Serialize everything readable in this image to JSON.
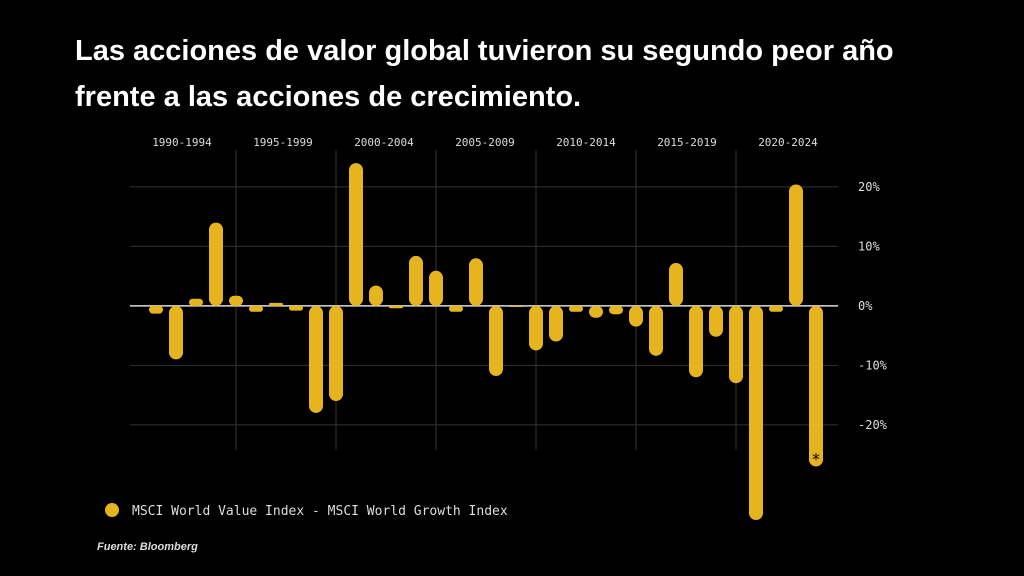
{
  "chart_data": {
    "type": "bar",
    "title_lines": [
      "Las acciones de valor global tuvieron su segundo peor año",
      "frente a las acciones de crecimiento."
    ],
    "periods": [
      "1990-1994",
      "1995-1999",
      "2000-2004",
      "2005-2009",
      "2010-2014",
      "2015-2019",
      "2020-2024"
    ],
    "categories": [
      null,
      null,
      null,
      null,
      null,
      null,
      null,
      null,
      null,
      null,
      null,
      null,
      null,
      null,
      null,
      null,
      null,
      null,
      null,
      null,
      null,
      null,
      null,
      null,
      null,
      null,
      null,
      null,
      null,
      null,
      null,
      null,
      null,
      null
    ],
    "series": [
      {
        "name": "MSCI World Value Index - MSCI World Growth Index",
        "color": "#e5b41f",
        "values": [
          -1.3,
          -9,
          1.2,
          14,
          1.7,
          -1,
          0.5,
          -0.8,
          -18,
          -16,
          24,
          3.4,
          -0.4,
          8.4,
          5.9,
          -1,
          8,
          -11.8,
          -0.2,
          -7.5,
          -6,
          -1,
          -2,
          -1.4,
          -3.5,
          -8.4,
          7.2,
          -12,
          -5.2,
          -13,
          -36,
          -1,
          20.4,
          -27
        ]
      }
    ],
    "ylim": [
      -36.5,
      26.2
    ],
    "yticks": [
      {
        "value": 20,
        "label": "20%"
      },
      {
        "value": 10,
        "label": "10%"
      },
      {
        "value": 0,
        "label": "0%"
      },
      {
        "value": -10,
        "label": "-10%"
      },
      {
        "value": -20,
        "label": "-20%"
      }
    ],
    "grid": true,
    "annotation": "*",
    "source": "Fuente: Bloomberg"
  }
}
